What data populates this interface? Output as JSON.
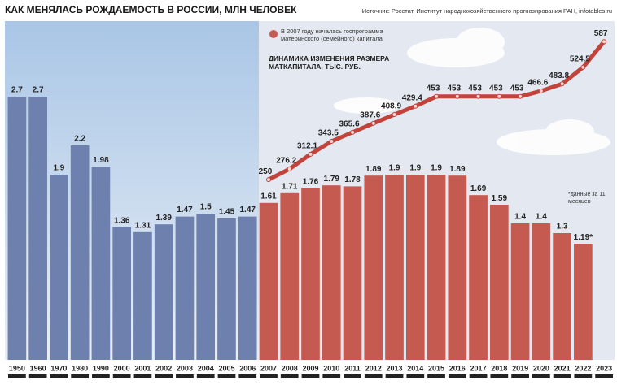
{
  "chart_data": {
    "type": "bar",
    "title": "КАК МЕНЯЛАСЬ РОЖДАЕМОСТЬ В РОССИИ, МЛН ЧЕЛОВЕК",
    "source": "Источник: Росстат, Институт народнохозяйственного прогнозирования РАН, infotables.ru",
    "note": "В 2007 году началась госпрограмма материнского (семейного) капитала",
    "footnote": "*данные за 11 месяцев",
    "categories": [
      "1950",
      "1960",
      "1970",
      "1980",
      "1990",
      "2000",
      "2001",
      "2002",
      "2003",
      "2004",
      "2005",
      "2006",
      "2007",
      "2008",
      "2009",
      "2010",
      "2011",
      "2012",
      "2013",
      "2014",
      "2015",
      "2016",
      "2017",
      "2018",
      "2019",
      "2020",
      "2021",
      "2022",
      "2023"
    ],
    "ylim": [
      0,
      3.5
    ],
    "y2lim": [
      -190,
      643
    ],
    "series": [
      {
        "type": "bar",
        "values": [
          2.7,
          2.7,
          1.9,
          2.2,
          1.98,
          1.36,
          1.31,
          1.39,
          1.47,
          1.5,
          1.45,
          1.47,
          1.61,
          1.71,
          1.76,
          1.79,
          1.78,
          1.89,
          1.9,
          1.9,
          1.9,
          1.89,
          1.69,
          1.59,
          1.4,
          1.4,
          1.3,
          1.19,
          null
        ],
        "value_labels": [
          "2.7",
          "2.7",
          "1.9",
          "2.2",
          "1.98",
          "1.36",
          "1.31",
          "1.39",
          "1.47",
          "1.5",
          "1.45",
          "1.47",
          "1.61",
          "1.71",
          "1.76",
          "1.79",
          "1.78",
          "1.89",
          "1.9",
          "1.9",
          "1.9",
          "1.89",
          "1.69",
          "1.59",
          "1.4",
          "1.4",
          "1.3",
          "1.19*",
          null
        ],
        "colors": [
          "#6e80ae",
          "#6e80ae",
          "#6e80ae",
          "#6e80ae",
          "#6e80ae",
          "#6e80ae",
          "#6e80ae",
          "#6e80ae",
          "#6e80ae",
          "#6e80ae",
          "#6e80ae",
          "#6e80ae",
          "#c45a50",
          "#c45a50",
          "#c45a50",
          "#c45a50",
          "#c45a50",
          "#c45a50",
          "#c45a50",
          "#c45a50",
          "#c45a50",
          "#c45a50",
          "#c45a50",
          "#c45a50",
          "#c45a50",
          "#c45a50",
          "#c45a50",
          "#c45a50",
          "#c45a50"
        ]
      },
      {
        "type": "line",
        "axis": "y2",
        "color": "#c2433b",
        "name": "ДИНАМИКА ИЗМЕНЕНИЯ РАЗМЕРА МАТКАПИТАЛА, ТЫС. РУБ.",
        "values": [
          null,
          null,
          null,
          null,
          null,
          null,
          null,
          null,
          null,
          null,
          null,
          null,
          250,
          276.2,
          312.1,
          343.5,
          365.6,
          387.6,
          408.9,
          429.4,
          453,
          453,
          453,
          453,
          453,
          466.6,
          483.8,
          524.5,
          587
        ]
      }
    ]
  }
}
